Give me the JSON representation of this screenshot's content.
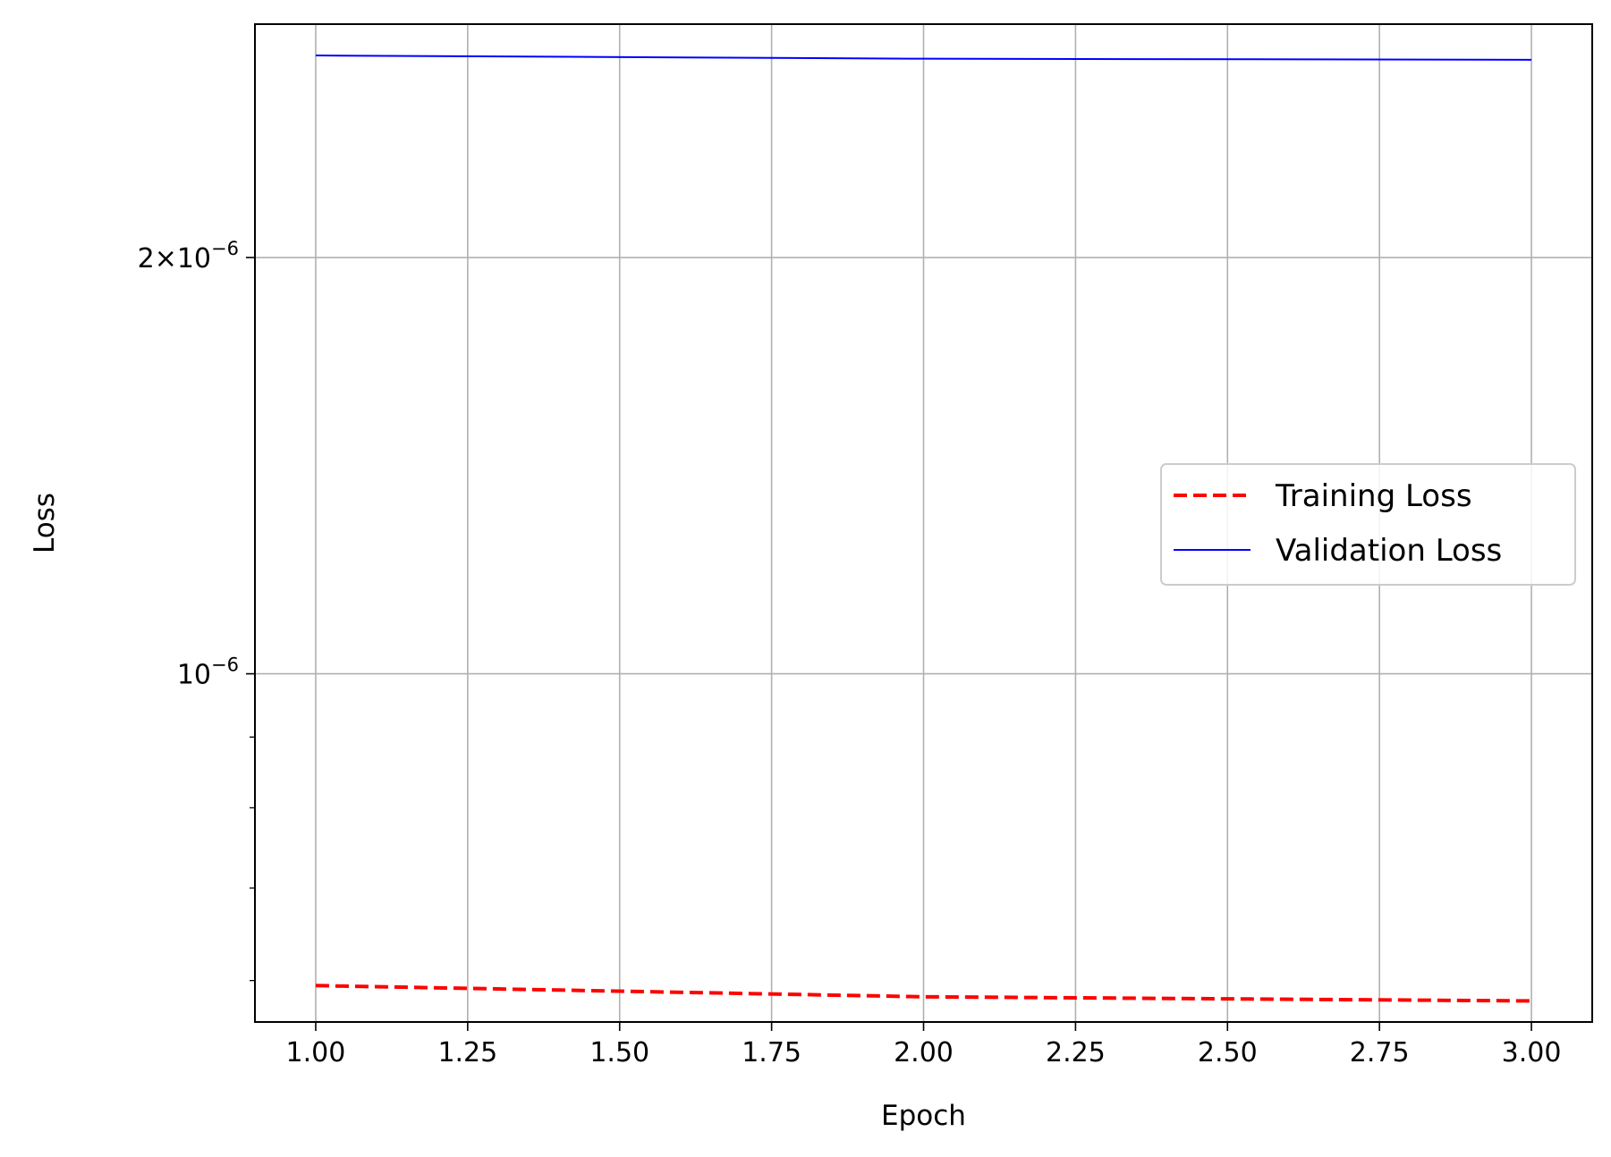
{
  "chart_data": {
    "type": "line",
    "xlabel": "Epoch",
    "ylabel": "Loss",
    "x": [
      1,
      2,
      3
    ],
    "xlim": [
      0.9,
      3.1
    ],
    "ylim": [
      5.6e-07,
      2.95e-06
    ],
    "yscale": "log",
    "grid": true,
    "legend_position": "center-right",
    "x_ticks": [
      1.0,
      1.25,
      1.5,
      1.75,
      2.0,
      2.25,
      2.5,
      2.75,
      3.0
    ],
    "x_tick_labels": [
      "1.00",
      "1.25",
      "1.50",
      "1.75",
      "2.00",
      "2.25",
      "2.50",
      "2.75",
      "3.00"
    ],
    "y_major_ticks": [
      {
        "value": 2e-06,
        "base": "2×10",
        "exp": "−6"
      },
      {
        "value": 1e-06,
        "base": "10",
        "exp": "−6"
      }
    ],
    "y_minor_ticks": [
      6e-07,
      7e-07,
      8e-07,
      9e-07,
      3e-06
    ],
    "series": [
      {
        "name": "Training Loss",
        "values": [
          5.95e-07,
          5.84e-07,
          5.8e-07
        ],
        "color": "#ff0000",
        "style": "dashed"
      },
      {
        "name": "Validation Loss",
        "values": [
          2.8e-06,
          2.785e-06,
          2.78e-06
        ],
        "color": "#0000ff",
        "style": "solid"
      }
    ]
  }
}
